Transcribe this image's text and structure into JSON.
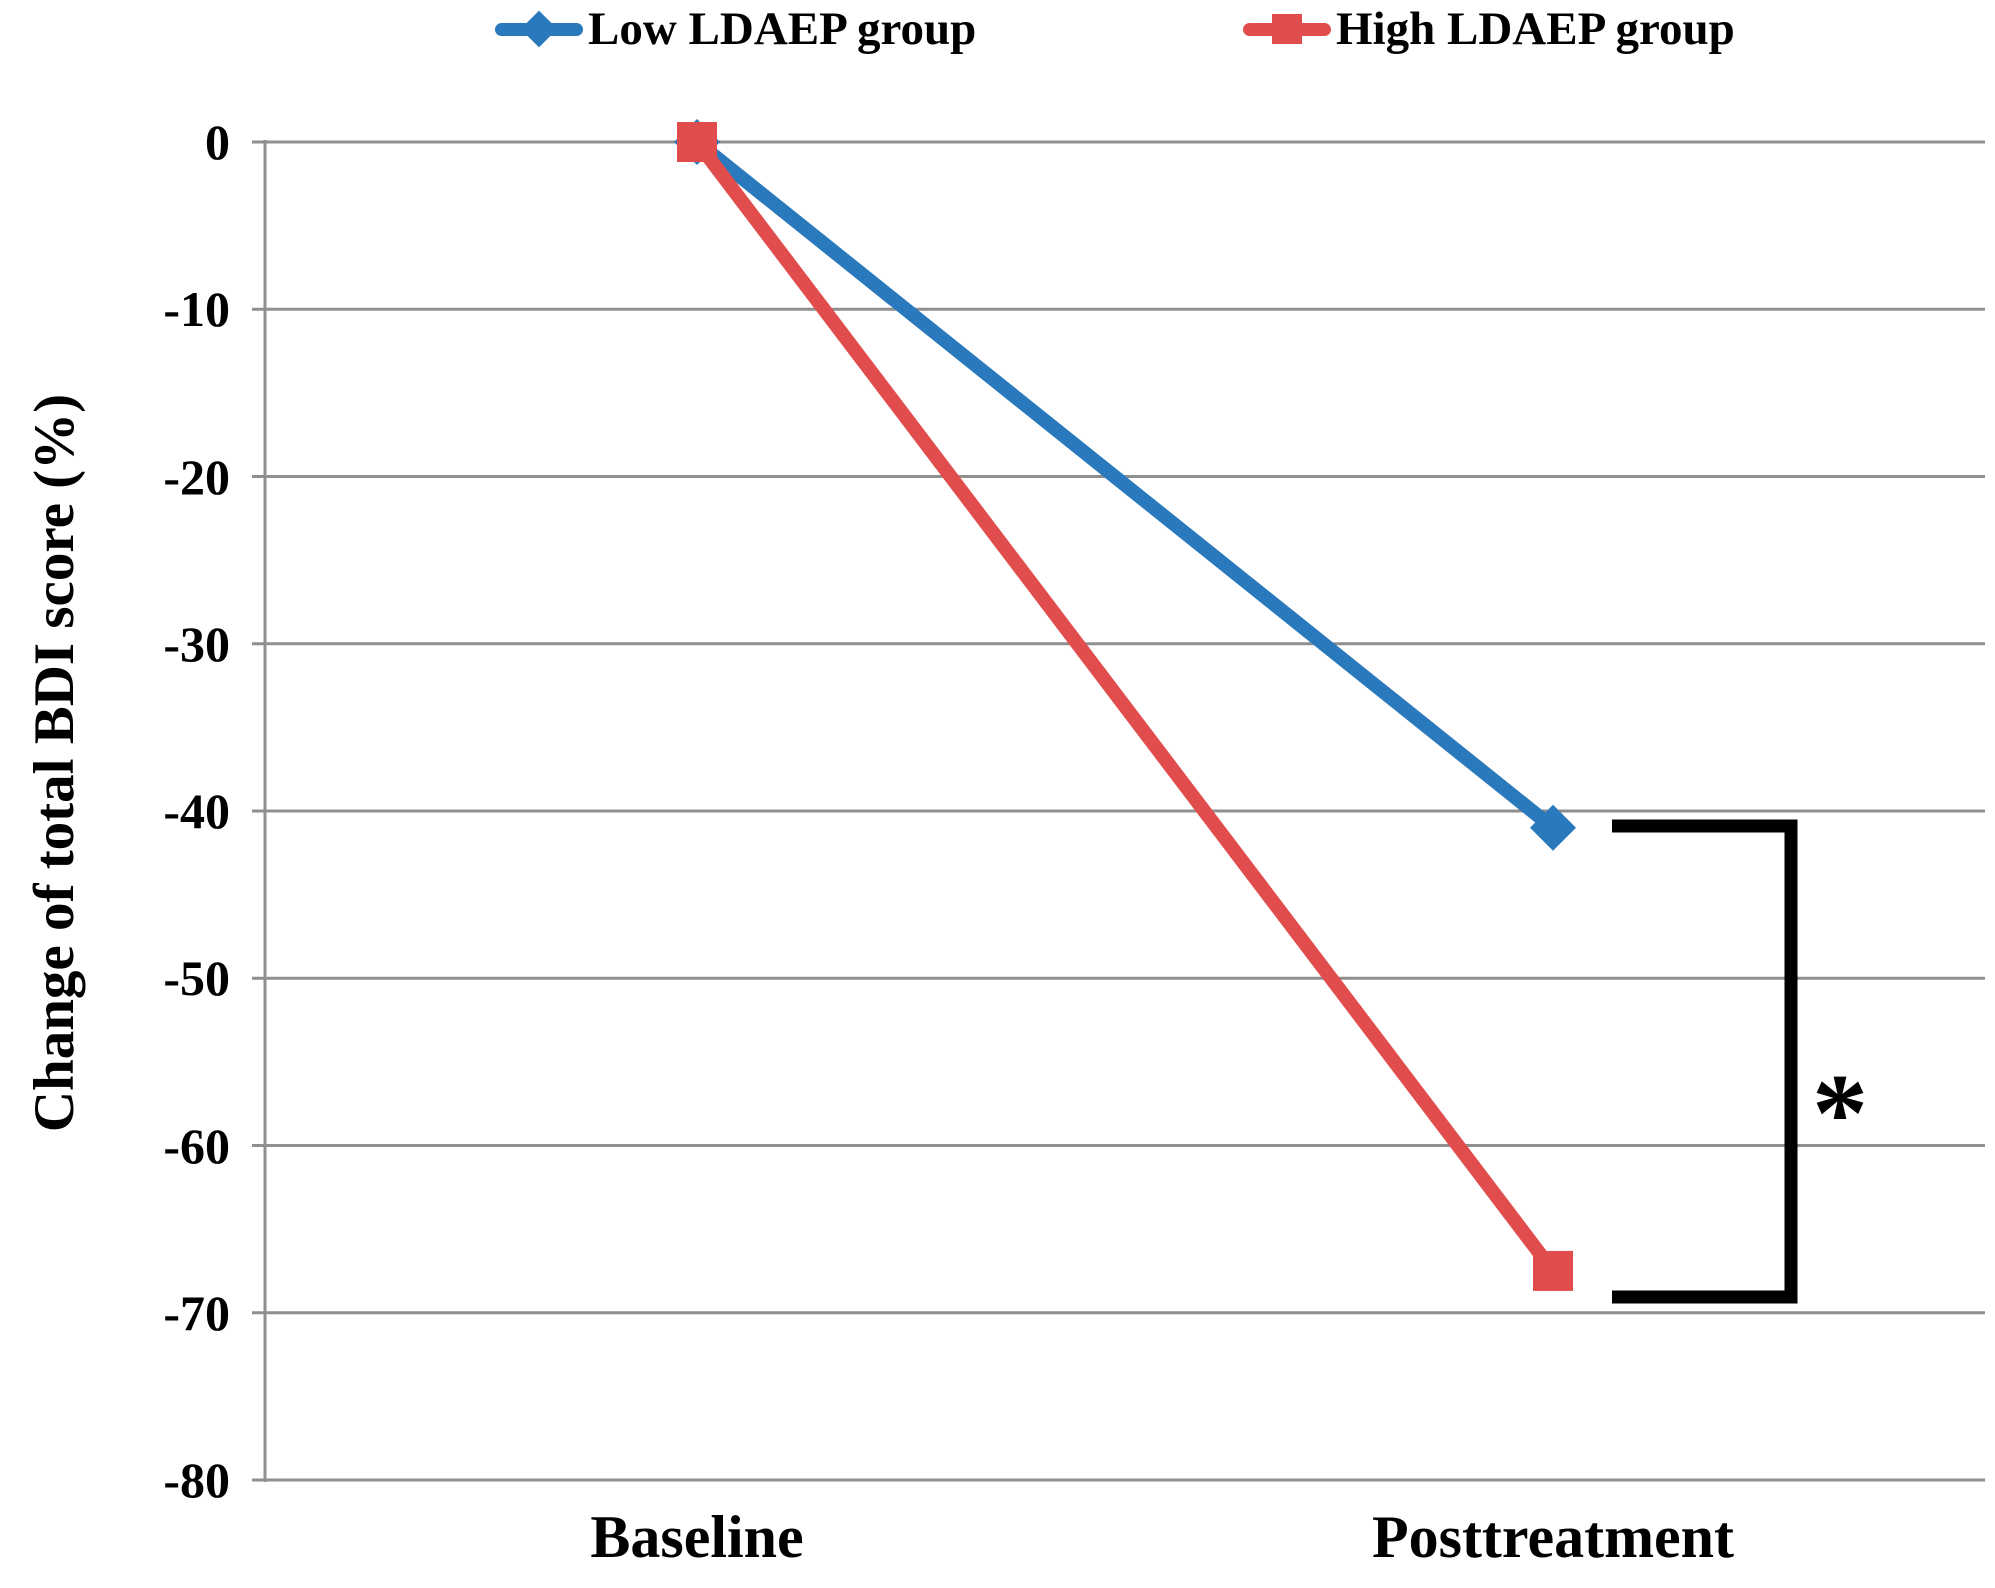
{
  "legend": {
    "items": [
      {
        "label": "Low LDAEP group",
        "color": "#2A79BC",
        "marker": "diamond"
      },
      {
        "label": "High LDAEP group",
        "color": "#E14C4C",
        "marker": "square"
      }
    ]
  },
  "chart_data": {
    "type": "line",
    "categories": [
      "Baseline",
      "Posttreatment"
    ],
    "series": [
      {
        "name": "Low LDAEP group",
        "color": "#2A79BC",
        "marker": "diamond",
        "values": [
          0,
          -41
        ]
      },
      {
        "name": "High LDAEP group",
        "color": "#E14C4C",
        "marker": "square",
        "values": [
          0,
          -67.5
        ]
      }
    ],
    "ylabel": "Change of total BDI score (%)",
    "xlabel": "",
    "ylim": [
      -80,
      0
    ],
    "yticks": [
      0,
      -10,
      -20,
      -30,
      -40,
      -50,
      -60,
      -70,
      -80
    ],
    "grid": "horizontal",
    "legend_position": "top",
    "annotation": {
      "symbol": "*"
    }
  },
  "colors": {
    "axis": "#8F8F8F",
    "grid": "#8F8F8F",
    "bracket": "#000000",
    "text": "#000000",
    "background": "#FFFFFF"
  }
}
